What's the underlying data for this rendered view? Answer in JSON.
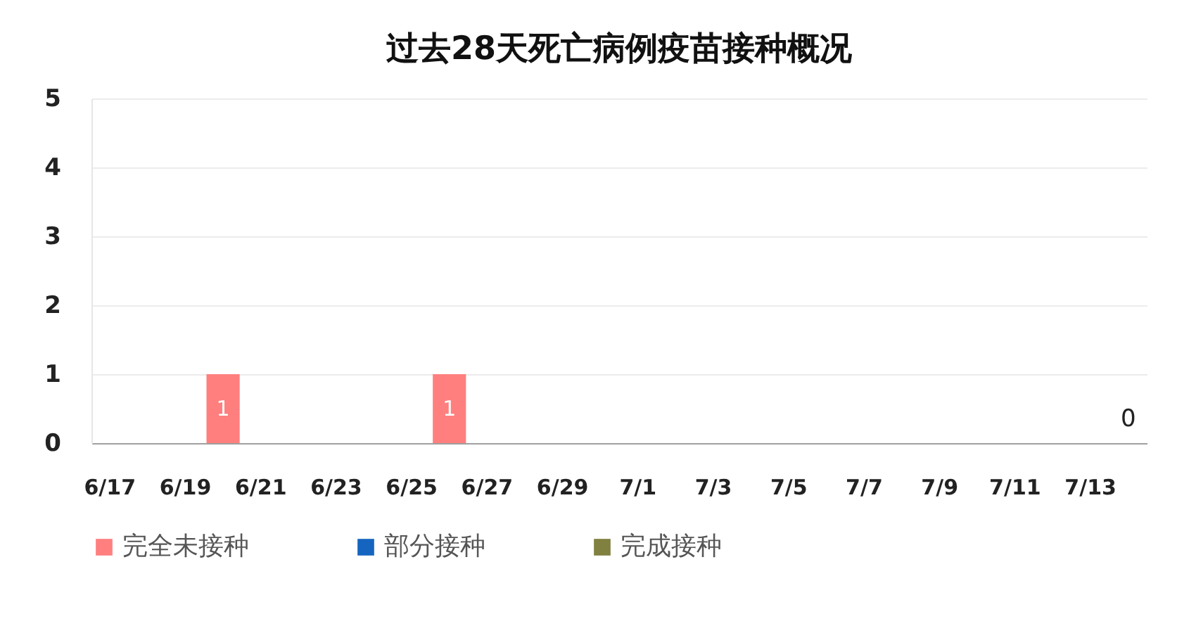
{
  "chart_data": {
    "type": "bar",
    "title": "过去28天死亡病例疫苗接种概况",
    "categories": [
      "6/17",
      null,
      "6/19",
      null,
      "6/21",
      null,
      "6/23",
      null,
      "6/25",
      null,
      "6/27",
      null,
      "6/29",
      null,
      "7/1",
      null,
      "7/3",
      null,
      "7/5",
      null,
      "7/7",
      null,
      "7/9",
      null,
      "7/11",
      null,
      "7/13",
      null
    ],
    "stacked": true,
    "series": [
      {
        "name": "完全未接种",
        "color": "#ff7f7f",
        "values": [
          0,
          0,
          0,
          1,
          0,
          0,
          0,
          0,
          0,
          1,
          0,
          0,
          0,
          0,
          0,
          0,
          0,
          0,
          0,
          0,
          0,
          0,
          0,
          0,
          0,
          0,
          0,
          0
        ],
        "value_labels": [
          null,
          null,
          null,
          "1",
          null,
          null,
          null,
          null,
          null,
          "1",
          null,
          null,
          null,
          null,
          null,
          null,
          null,
          null,
          null,
          null,
          null,
          null,
          null,
          null,
          null,
          null,
          null,
          null
        ]
      },
      {
        "name": "部分接种",
        "color": "#1565c0",
        "values": [
          0,
          0,
          0,
          0,
          0,
          0,
          0,
          0,
          0,
          0,
          0,
          0,
          0,
          0,
          0,
          0,
          0,
          0,
          0,
          0,
          0,
          0,
          0,
          0,
          0,
          0,
          0,
          0
        ]
      },
      {
        "name": "完成接种",
        "color": "#808040",
        "values": [
          0,
          0,
          0,
          0,
          0,
          0,
          0,
          0,
          0,
          0,
          0,
          0,
          0,
          0,
          0,
          0,
          0,
          0,
          0,
          0,
          0,
          0,
          0,
          0,
          0,
          0,
          0,
          0
        ]
      }
    ],
    "totals": [
      null,
      null,
      null,
      null,
      null,
      null,
      null,
      null,
      null,
      null,
      null,
      null,
      null,
      null,
      null,
      null,
      null,
      null,
      null,
      null,
      null,
      null,
      null,
      null,
      null,
      null,
      null,
      "0"
    ],
    "ylim": [
      0,
      5
    ],
    "yticks": [
      0,
      1,
      2,
      3,
      4,
      5
    ],
    "grid": "y",
    "legend": "bottom"
  }
}
